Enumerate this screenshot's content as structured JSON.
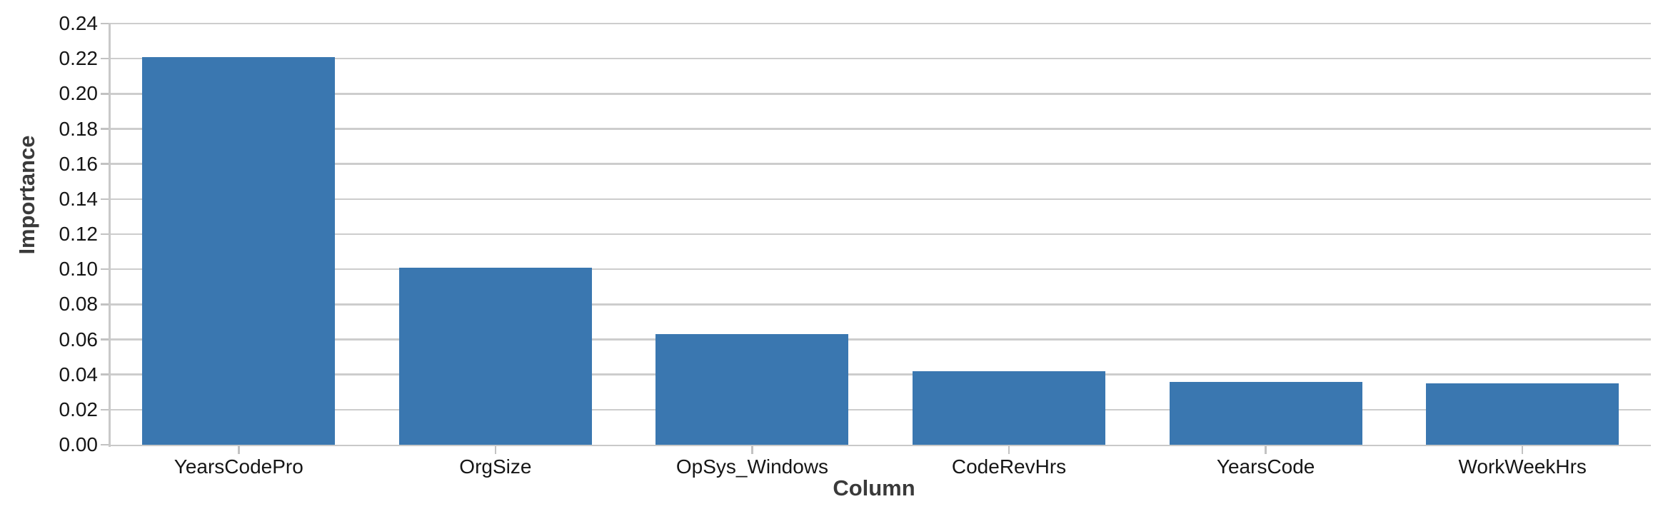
{
  "chart_data": {
    "type": "bar",
    "title": "",
    "xlabel": "Column",
    "ylabel": "Importance",
    "categories": [
      "YearsCodePro",
      "OrgSize",
      "OpSys_Windows",
      "CodeRevHrs",
      "YearsCode",
      "WorkWeekHrs"
    ],
    "values": [
      0.221,
      0.101,
      0.063,
      0.042,
      0.036,
      0.035
    ],
    "series_name": "Importance",
    "ylim": [
      0.0,
      0.24
    ],
    "ytick_step": 0.02,
    "ytick_labels": [
      "0.00",
      "0.02",
      "0.04",
      "0.06",
      "0.08",
      "0.10",
      "0.12",
      "0.14",
      "0.16",
      "0.18",
      "0.20",
      "0.22",
      "0.24"
    ],
    "grid": "horizontal",
    "legend_position": "none",
    "colors": {
      "bar": "#3a77b0",
      "gridline": "#cdcdcd",
      "axis_line": "#c9c9c9",
      "tick_mark": "#c2c2c2",
      "tick_text": "#161616",
      "axis_title_text": "#3a3a3a",
      "background": "#ffffff"
    }
  }
}
